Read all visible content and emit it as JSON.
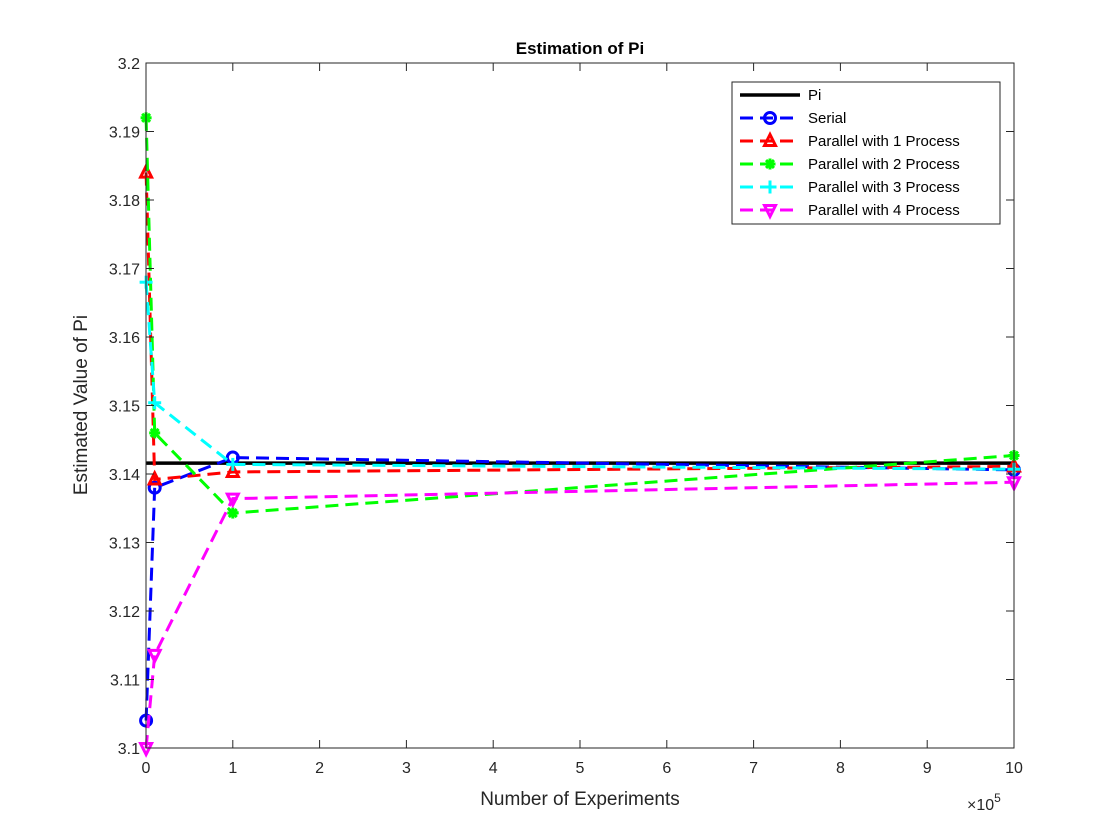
{
  "chart_data": {
    "type": "line",
    "title": "Estimation of Pi",
    "xlabel": "Number of Experiments",
    "ylabel": "Estimated Value of Pi",
    "x_exponent_label": "×10",
    "x_exponent_power": "5",
    "x_scale_factor": 100000,
    "xlim": [
      0,
      1000000
    ],
    "ylim": [
      3.1,
      3.2
    ],
    "x_ticks": [
      0,
      100000,
      200000,
      300000,
      400000,
      500000,
      600000,
      700000,
      800000,
      900000,
      1000000
    ],
    "x_tick_labels": [
      "0",
      "1",
      "2",
      "3",
      "4",
      "5",
      "6",
      "7",
      "8",
      "9",
      "10"
    ],
    "y_ticks": [
      3.1,
      3.11,
      3.12,
      3.13,
      3.14,
      3.15,
      3.16,
      3.17,
      3.18,
      3.19,
      3.2
    ],
    "y_tick_labels": [
      "3.1",
      "3.11",
      "3.12",
      "3.13",
      "3.14",
      "3.15",
      "3.16",
      "3.17",
      "3.18",
      "3.19",
      "3.2"
    ],
    "grid": false,
    "legend_position": "top-right",
    "x": [
      100,
      10000,
      100000,
      1000000
    ],
    "series": [
      {
        "name": "Pi",
        "color": "#000000",
        "dashed": false,
        "marker": "none",
        "values": [
          3.14159,
          3.14159,
          3.14159,
          3.14159
        ]
      },
      {
        "name": "Serial",
        "color": "#0000ff",
        "dashed": true,
        "marker": "circle",
        "values": [
          3.104,
          3.138,
          3.1424,
          3.1406
        ]
      },
      {
        "name": "Parallel with 1 Process",
        "color": "#ff0000",
        "dashed": true,
        "marker": "triangle-up",
        "values": [
          3.184,
          3.1392,
          3.1403,
          3.1411
        ]
      },
      {
        "name": "Parallel with 2 Process",
        "color": "#00ff00",
        "dashed": true,
        "marker": "asterisk",
        "values": [
          3.192,
          3.146,
          3.1343,
          3.1427
        ]
      },
      {
        "name": "Parallel with 3 Process",
        "color": "#00ffff",
        "dashed": true,
        "marker": "plus",
        "values": [
          3.168,
          3.1504,
          3.1414,
          3.1407
        ]
      },
      {
        "name": "Parallel with 4 Process",
        "color": "#ff00ff",
        "dashed": true,
        "marker": "triangle-down",
        "values": [
          3.1,
          3.1136,
          3.1364,
          3.1388
        ]
      }
    ]
  }
}
